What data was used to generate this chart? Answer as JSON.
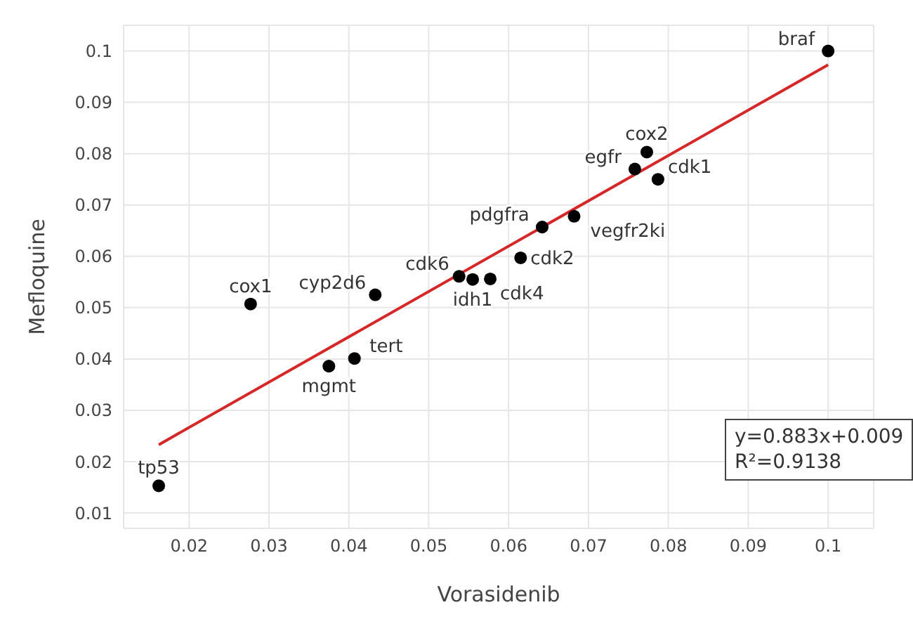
{
  "chart_data": {
    "type": "scatter",
    "xlabel": "Vorasidenib",
    "ylabel": "Mefloquine",
    "xlim": [
      0.0118,
      0.1057
    ],
    "ylim": [
      0.007,
      0.105
    ],
    "xticks": [
      0.02,
      0.03,
      0.04,
      0.05,
      0.06,
      0.07,
      0.08,
      0.09,
      0.1
    ],
    "yticks": [
      0.01,
      0.02,
      0.03,
      0.04,
      0.05,
      0.06,
      0.07,
      0.08,
      0.09,
      0.1
    ],
    "grid": true,
    "marker": "circle",
    "series": [
      {
        "color": "#000000",
        "x": [
          0.1,
          0.0773,
          0.0758,
          0.0787,
          0.0682,
          0.0642,
          0.0615,
          0.0538,
          0.0555,
          0.0577,
          0.0277,
          0.0433,
          0.0375,
          0.0407,
          0.0162
        ],
        "values": [
          0.1,
          0.0803,
          0.077,
          0.075,
          0.0678,
          0.0657,
          0.0597,
          0.0561,
          0.0555,
          0.0556,
          0.0507,
          0.0525,
          0.0386,
          0.0401,
          0.0153
        ]
      },
      {
        "type": "line",
        "color": "#d62728",
        "line_style": "solid",
        "marker": "none",
        "x": [
          0.0162,
          0.1
        ],
        "values": [
          0.0233,
          0.0973
        ]
      }
    ],
    "annotations": [
      {
        "text": "braf",
        "x": 0.1,
        "y": 0.1
      },
      {
        "text": "cox2",
        "x": 0.0773,
        "y": 0.0803
      },
      {
        "text": "egfr",
        "x": 0.0758,
        "y": 0.077
      },
      {
        "text": "cdk1",
        "x": 0.0787,
        "y": 0.075
      },
      {
        "text": "vegfr2ki",
        "x": 0.0682,
        "y": 0.0678
      },
      {
        "text": "pdgfra",
        "x": 0.0642,
        "y": 0.0657
      },
      {
        "text": "cdk2",
        "x": 0.0615,
        "y": 0.0597
      },
      {
        "text": "cdk6",
        "x": 0.0538,
        "y": 0.0561
      },
      {
        "text": "idh1",
        "x": 0.0555,
        "y": 0.0555
      },
      {
        "text": "cdk4",
        "x": 0.0577,
        "y": 0.0556
      },
      {
        "text": "cox1",
        "x": 0.0277,
        "y": 0.0507
      },
      {
        "text": "cyp2d6",
        "x": 0.0433,
        "y": 0.0525
      },
      {
        "text": "mgmt",
        "x": 0.0375,
        "y": 0.0386
      },
      {
        "text": "tert",
        "x": 0.0407,
        "y": 0.0401
      },
      {
        "text": "tp53",
        "x": 0.0162,
        "y": 0.0153
      },
      "y=0.883x+0.009",
      "R²=0.9138"
    ]
  }
}
